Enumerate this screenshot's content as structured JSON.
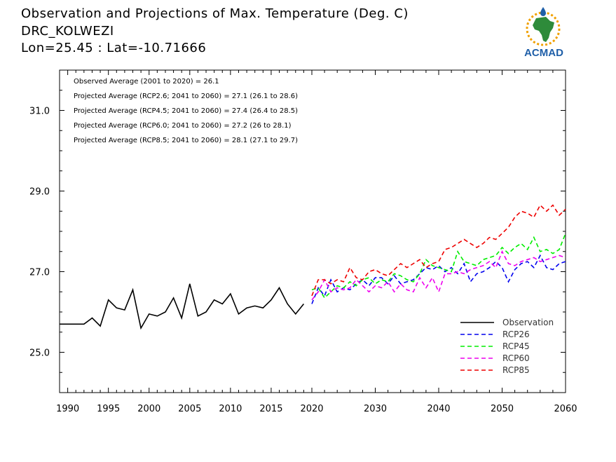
{
  "header": {
    "title": "Observation and Projections of Max. Temperature (Deg. C)",
    "station": "DRC_KOLWEZI",
    "coords": "Lon=25.45 : Lat=-10.71666"
  },
  "logo": {
    "text": "ACMAD",
    "brand_color": "#1f5fa8",
    "accent_color": "#f0a000",
    "map_color": "#2e8b3a"
  },
  "chart_data": {
    "type": "line",
    "ylim": [
      24.0,
      32.0
    ],
    "y_ticks": [
      25.0,
      27.0,
      29.0,
      31.0
    ],
    "y_tick_labels": [
      "25.0",
      "27.0",
      "29.0",
      "31.0"
    ],
    "x_ticks_obs": [
      1990,
      1995,
      2000,
      2005,
      2010,
      2015,
      2020
    ],
    "x_ticks_proj": [
      2020,
      2030,
      2040,
      2050,
      2060
    ],
    "annotations": [
      "Observed Average (2001 to 2020) = 26.1",
      "Projected Average (RCP2.6; 2041 to 2060) = 27.1 (26.1 to 28.6)",
      "Projected Average (RCP4.5; 2041 to 2060) = 27.4 (26.4 to 28.5)",
      "Projected Average (RCP6.0; 2041 to 2060) = 27.2 (26 to 28.1)",
      "Projected Average (RCP8.5; 2041 to 2060) = 28.1 (27.1 to 29.7)"
    ],
    "observation": {
      "name": "Observation",
      "color": "#000000",
      "x": [
        1989,
        1990,
        1991,
        1992,
        1993,
        1994,
        1995,
        1996,
        1997,
        1998,
        1999,
        2000,
        2001,
        2002,
        2003,
        2004,
        2005,
        2006,
        2007,
        2008,
        2009,
        2010,
        2011,
        2012,
        2013,
        2014,
        2015,
        2016,
        2017,
        2018,
        2019
      ],
      "values": [
        25.7,
        25.7,
        25.7,
        25.7,
        25.85,
        25.65,
        26.3,
        26.1,
        26.05,
        26.55,
        25.6,
        25.95,
        25.9,
        26.0,
        26.35,
        25.85,
        26.7,
        25.9,
        26.0,
        26.3,
        26.2,
        26.45,
        25.95,
        26.1,
        26.15,
        26.1,
        26.3,
        26.6,
        26.2,
        25.95,
        26.2
      ]
    },
    "series": [
      {
        "name": "RCP26",
        "color": "#0000ee",
        "x": [
          2020,
          2021,
          2022,
          2023,
          2024,
          2025,
          2026,
          2027,
          2028,
          2029,
          2030,
          2031,
          2032,
          2033,
          2034,
          2035,
          2036,
          2037,
          2038,
          2039,
          2040,
          2041,
          2042,
          2043,
          2044,
          2045,
          2046,
          2047,
          2048,
          2049,
          2050,
          2051,
          2052,
          2053,
          2054,
          2055,
          2056,
          2057,
          2058,
          2059,
          2060
        ],
        "values": [
          26.2,
          26.6,
          26.4,
          26.8,
          26.5,
          26.6,
          26.55,
          26.7,
          26.8,
          26.65,
          26.85,
          26.85,
          26.7,
          26.9,
          26.7,
          26.75,
          26.8,
          26.95,
          27.1,
          27.05,
          27.15,
          27.0,
          27.1,
          26.95,
          27.2,
          26.75,
          26.95,
          27.0,
          27.1,
          27.25,
          27.1,
          26.75,
          27.05,
          27.2,
          27.25,
          27.1,
          27.4,
          27.1,
          27.05,
          27.2,
          27.25
        ]
      },
      {
        "name": "RCP45",
        "color": "#00ee00",
        "x": [
          2020,
          2021,
          2022,
          2023,
          2024,
          2025,
          2026,
          2027,
          2028,
          2029,
          2030,
          2031,
          2032,
          2033,
          2034,
          2035,
          2036,
          2037,
          2038,
          2039,
          2040,
          2041,
          2042,
          2043,
          2044,
          2045,
          2046,
          2047,
          2048,
          2049,
          2050,
          2051,
          2052,
          2053,
          2054,
          2055,
          2056,
          2057,
          2058,
          2059,
          2060
        ],
        "values": [
          26.55,
          26.6,
          26.35,
          26.5,
          26.65,
          26.6,
          26.75,
          26.65,
          26.8,
          26.85,
          26.7,
          26.8,
          26.75,
          26.95,
          26.9,
          26.8,
          26.75,
          26.95,
          27.3,
          27.15,
          27.1,
          27.05,
          27.0,
          27.5,
          27.25,
          27.2,
          27.15,
          27.3,
          27.35,
          27.4,
          27.6,
          27.45,
          27.6,
          27.7,
          27.55,
          27.85,
          27.5,
          27.55,
          27.45,
          27.55,
          27.95
        ]
      },
      {
        "name": "RCP60",
        "color": "#ee00ee",
        "x": [
          2020,
          2021,
          2022,
          2023,
          2024,
          2025,
          2026,
          2027,
          2028,
          2029,
          2030,
          2031,
          2032,
          2033,
          2034,
          2035,
          2036,
          2037,
          2038,
          2039,
          2040,
          2041,
          2042,
          2043,
          2044,
          2045,
          2046,
          2047,
          2048,
          2049,
          2050,
          2051,
          2052,
          2053,
          2054,
          2055,
          2056,
          2057,
          2058,
          2059,
          2060
        ],
        "values": [
          26.3,
          26.5,
          26.8,
          26.5,
          26.6,
          26.55,
          26.6,
          26.8,
          26.65,
          26.5,
          26.65,
          26.6,
          26.75,
          26.5,
          26.7,
          26.55,
          26.5,
          26.85,
          26.6,
          26.85,
          26.5,
          26.95,
          26.95,
          27.0,
          26.95,
          27.05,
          27.1,
          27.15,
          27.25,
          27.1,
          27.5,
          27.2,
          27.15,
          27.25,
          27.3,
          27.35,
          27.25,
          27.3,
          27.35,
          27.4,
          27.35
        ]
      },
      {
        "name": "RCP85",
        "color": "#ee0000",
        "x": [
          2020,
          2021,
          2022,
          2023,
          2024,
          2025,
          2026,
          2027,
          2028,
          2029,
          2030,
          2031,
          2032,
          2033,
          2034,
          2035,
          2036,
          2037,
          2038,
          2039,
          2040,
          2041,
          2042,
          2043,
          2044,
          2045,
          2046,
          2047,
          2048,
          2049,
          2050,
          2051,
          2052,
          2053,
          2054,
          2055,
          2056,
          2057,
          2058,
          2059,
          2060
        ],
        "values": [
          26.4,
          26.8,
          26.8,
          26.7,
          26.8,
          26.75,
          27.1,
          26.85,
          26.8,
          27.0,
          27.05,
          26.95,
          26.9,
          27.05,
          27.2,
          27.1,
          27.2,
          27.3,
          27.1,
          27.2,
          27.25,
          27.55,
          27.6,
          27.7,
          27.8,
          27.7,
          27.6,
          27.7,
          27.85,
          27.8,
          27.95,
          28.1,
          28.35,
          28.5,
          28.45,
          28.35,
          28.65,
          28.5,
          28.65,
          28.4,
          28.55
        ]
      }
    ],
    "legend_placement": "bottom-right",
    "grid": false
  }
}
